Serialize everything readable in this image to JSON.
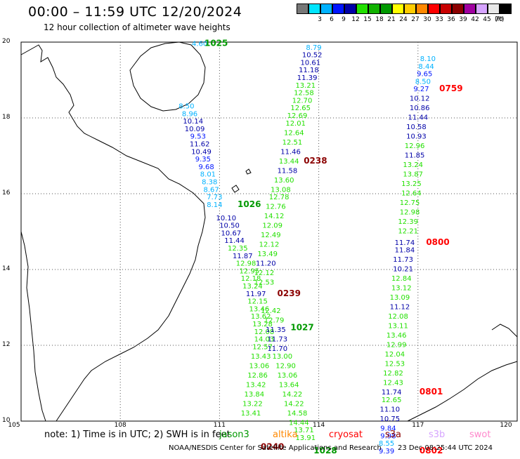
{
  "header": {
    "title": "00:00 – 11:59 UTC 12/20/2024",
    "subtitle": "12 hour collection of altimeter wave heights"
  },
  "colorbar": {
    "unit": "(ft)",
    "swatches": [
      {
        "color": "#777777",
        "label": ""
      },
      {
        "color": "#00e5ff",
        "label": "3"
      },
      {
        "color": "#00b2ff",
        "label": "6"
      },
      {
        "color": "#0015ff",
        "label": "9"
      },
      {
        "color": "#0000a8",
        "label": "12"
      },
      {
        "color": "#22e000",
        "label": "15"
      },
      {
        "color": "#11b200",
        "label": "18"
      },
      {
        "color": "#009900",
        "label": "21"
      },
      {
        "color": "#ffff00",
        "label": "24"
      },
      {
        "color": "#ffcc00",
        "label": "27"
      },
      {
        "color": "#ff8800",
        "label": "30"
      },
      {
        "color": "#ff0000",
        "label": "33"
      },
      {
        "color": "#c80000",
        "label": "36"
      },
      {
        "color": "#8b0000",
        "label": "39"
      },
      {
        "color": "#a000a0",
        "label": "42"
      },
      {
        "color": "#d6a4ff",
        "label": "45"
      },
      {
        "color": "#e8e8e8",
        "label": "70"
      },
      {
        "color": "#000000",
        "label": ""
      }
    ]
  },
  "axes": {
    "lat_ticks": [
      "20",
      "18",
      "16",
      "14",
      "12",
      "10"
    ],
    "lon_ticks": [
      "105",
      "108",
      "111",
      "114",
      "117",
      "120"
    ]
  },
  "tracks": [
    {
      "name": "jason3-west",
      "color_key": "green",
      "time": "1025",
      "points": [
        {
          "lat": 19.9,
          "lon": 110.4,
          "v": "4.60",
          "c": "#00b2ff"
        },
        {
          "lat": 18.25,
          "lon": 110.0,
          "v": "8.50",
          "c": "#00b2ff"
        },
        {
          "lat": 18.05,
          "lon": 110.1,
          "v": "8.96",
          "c": "#00b2ff"
        },
        {
          "lat": 17.85,
          "lon": 110.2,
          "v": "10.14",
          "c": "#0000a8"
        },
        {
          "lat": 17.65,
          "lon": 110.25,
          "v": "10.09",
          "c": "#0000a8"
        },
        {
          "lat": 17.45,
          "lon": 110.35,
          "v": "9.53",
          "c": "#0015ff"
        },
        {
          "lat": 17.25,
          "lon": 110.4,
          "v": "11.62",
          "c": "#0000a8"
        },
        {
          "lat": 17.05,
          "lon": 110.45,
          "v": "10.49",
          "c": "#0000a8"
        },
        {
          "lat": 16.85,
          "lon": 110.5,
          "v": "9.35",
          "c": "#0015ff"
        },
        {
          "lat": 16.65,
          "lon": 110.6,
          "v": "9.68",
          "c": "#0015ff"
        },
        {
          "lat": 16.45,
          "lon": 110.65,
          "v": "8.01",
          "c": "#00b2ff"
        },
        {
          "lat": 16.25,
          "lon": 110.7,
          "v": "8.38",
          "c": "#00b2ff"
        },
        {
          "lat": 16.05,
          "lon": 110.75,
          "v": "8.67",
          "c": "#00b2ff"
        },
        {
          "lat": 15.85,
          "lon": 110.85,
          "v": "7.73",
          "c": "#00b2ff"
        },
        {
          "lat": 15.65,
          "lon": 110.85,
          "v": "8.14",
          "c": "#00b2ff"
        }
      ]
    },
    {
      "name": "jason3-south",
      "color_key": "green",
      "time": "1026",
      "points": [
        {
          "lat": 15.3,
          "lon": 111.2,
          "v": "10.10",
          "c": "#0000a8"
        },
        {
          "lat": 15.1,
          "lon": 111.3,
          "v": "10.50",
          "c": "#0000a8"
        },
        {
          "lat": 14.9,
          "lon": 111.35,
          "v": "10.67",
          "c": "#0000a8"
        },
        {
          "lat": 14.7,
          "lon": 111.45,
          "v": "11.44",
          "c": "#0000a8"
        },
        {
          "lat": 14.5,
          "lon": 111.55,
          "v": "12.35",
          "c": "#22e000"
        },
        {
          "lat": 14.3,
          "lon": 111.7,
          "v": "11.87",
          "c": "#0000a8"
        },
        {
          "lat": 14.1,
          "lon": 111.8,
          "v": "12.98",
          "c": "#22e000"
        },
        {
          "lat": 13.9,
          "lon": 111.9,
          "v": "12.95",
          "c": "#22e000"
        },
        {
          "lat": 13.7,
          "lon": 111.95,
          "v": "12.18",
          "c": "#22e000"
        },
        {
          "lat": 13.5,
          "lon": 112.0,
          "v": "13.24",
          "c": "#22e000"
        },
        {
          "lat": 13.3,
          "lon": 112.1,
          "v": "11.97",
          "c": "#0000a8"
        },
        {
          "lat": 13.1,
          "lon": 112.15,
          "v": "12.15",
          "c": "#22e000"
        },
        {
          "lat": 12.9,
          "lon": 112.2,
          "v": "13.46",
          "c": "#22e000"
        },
        {
          "lat": 12.7,
          "lon": 112.25,
          "v": "13.62",
          "c": "#22e000"
        },
        {
          "lat": 12.5,
          "lon": 112.3,
          "v": "13.28",
          "c": "#22e000"
        },
        {
          "lat": 12.3,
          "lon": 112.35,
          "v": "12.08",
          "c": "#22e000"
        },
        {
          "lat": 12.1,
          "lon": 112.35,
          "v": "14.03",
          "c": "#22e000"
        },
        {
          "lat": 11.9,
          "lon": 112.3,
          "v": "12.57",
          "c": "#22e000"
        },
        {
          "lat": 11.65,
          "lon": 112.25,
          "v": "13.43",
          "c": "#22e000"
        },
        {
          "lat": 11.4,
          "lon": 112.2,
          "v": "13.06",
          "c": "#22e000"
        },
        {
          "lat": 11.15,
          "lon": 112.15,
          "v": "12.86",
          "c": "#22e000"
        },
        {
          "lat": 10.9,
          "lon": 112.1,
          "v": "13.42",
          "c": "#22e000"
        },
        {
          "lat": 10.65,
          "lon": 112.05,
          "v": "13.84",
          "c": "#22e000"
        },
        {
          "lat": 10.4,
          "lon": 112.0,
          "v": "13.22",
          "c": "#22e000"
        },
        {
          "lat": 10.15,
          "lon": 111.95,
          "v": "13.41",
          "c": "#22e000"
        }
      ]
    },
    {
      "name": "s3a-track-1",
      "color_key": "darkred",
      "time": "0238",
      "points": [
        {
          "lat": 19.8,
          "lon": 113.85,
          "v": "8.79",
          "c": "#00b2ff"
        },
        {
          "lat": 19.6,
          "lon": 113.8,
          "v": "10.52",
          "c": "#0000a8"
        },
        {
          "lat": 19.4,
          "lon": 113.75,
          "v": "10.61",
          "c": "#0000a8"
        },
        {
          "lat": 19.2,
          "lon": 113.7,
          "v": "11.18",
          "c": "#0000a8"
        },
        {
          "lat": 19.0,
          "lon": 113.65,
          "v": "11.39",
          "c": "#0000a8"
        },
        {
          "lat": 18.8,
          "lon": 113.6,
          "v": "13.21",
          "c": "#22e000"
        },
        {
          "lat": 18.6,
          "lon": 113.55,
          "v": "12.58",
          "c": "#22e000"
        },
        {
          "lat": 18.4,
          "lon": 113.5,
          "v": "12.70",
          "c": "#22e000"
        },
        {
          "lat": 18.2,
          "lon": 113.45,
          "v": "12.65",
          "c": "#22e000"
        },
        {
          "lat": 18.0,
          "lon": 113.35,
          "v": "12.69",
          "c": "#22e000"
        },
        {
          "lat": 17.8,
          "lon": 113.3,
          "v": "12.01",
          "c": "#22e000"
        },
        {
          "lat": 17.55,
          "lon": 113.25,
          "v": "12.64",
          "c": "#22e000"
        },
        {
          "lat": 17.3,
          "lon": 113.2,
          "v": "12.51",
          "c": "#22e000"
        },
        {
          "lat": 17.05,
          "lon": 113.15,
          "v": "11.46",
          "c": "#0000a8"
        },
        {
          "lat": 16.8,
          "lon": 113.1,
          "v": "13.44",
          "c": "#22e000"
        },
        {
          "lat": 16.55,
          "lon": 113.05,
          "v": "11.58",
          "c": "#0000a8"
        },
        {
          "lat": 16.3,
          "lon": 112.95,
          "v": "13.60",
          "c": "#22e000"
        },
        {
          "lat": 16.05,
          "lon": 112.85,
          "v": "13.08",
          "c": "#22e000"
        },
        {
          "lat": 15.85,
          "lon": 112.8,
          "v": "12.78",
          "c": "#22e000"
        },
        {
          "lat": 15.6,
          "lon": 112.7,
          "v": "12.76",
          "c": "#22e000"
        },
        {
          "lat": 15.35,
          "lon": 112.65,
          "v": "14.12",
          "c": "#22e000"
        },
        {
          "lat": 15.1,
          "lon": 112.6,
          "v": "12.09",
          "c": "#22e000"
        },
        {
          "lat": 14.85,
          "lon": 112.55,
          "v": "12.49",
          "c": "#22e000"
        },
        {
          "lat": 14.6,
          "lon": 112.5,
          "v": "12.12",
          "c": "#22e000"
        },
        {
          "lat": 14.35,
          "lon": 112.45,
          "v": "13.49",
          "c": "#22e000"
        },
        {
          "lat": 14.1,
          "lon": 112.4,
          "v": "11.20",
          "c": "#0000a8"
        },
        {
          "lat": 13.85,
          "lon": 112.35,
          "v": "12.12",
          "c": "#22e000"
        },
        {
          "lat": 13.6,
          "lon": 112.35,
          "v": "12.53",
          "c": "#22e000"
        }
      ]
    },
    {
      "name": "s3a-track-2",
      "color_key": "darkred",
      "time": "0239",
      "points": [
        {
          "lat": 12.85,
          "lon": 112.55,
          "v": "12.42",
          "c": "#22e000"
        },
        {
          "lat": 12.6,
          "lon": 112.65,
          "v": "12.79",
          "c": "#22e000"
        },
        {
          "lat": 12.35,
          "lon": 112.7,
          "v": "11.35",
          "c": "#0000a8"
        },
        {
          "lat": 12.1,
          "lon": 112.75,
          "v": "11.73",
          "c": "#0000a8"
        },
        {
          "lat": 11.85,
          "lon": 112.75,
          "v": "11.70",
          "c": "#0000a8"
        }
      ]
    },
    {
      "name": "jason3-east-ofseg",
      "color_key": "green",
      "time": "1027",
      "points": [
        {
          "lat": 11.65,
          "lon": 112.9,
          "v": "13.00",
          "c": "#22e000"
        },
        {
          "lat": 11.4,
          "lon": 113.0,
          "v": "12.90",
          "c": "#22e000"
        },
        {
          "lat": 11.15,
          "lon": 113.05,
          "v": "13.06",
          "c": "#22e000"
        },
        {
          "lat": 10.9,
          "lon": 113.1,
          "v": "13.64",
          "c": "#22e000"
        },
        {
          "lat": 10.65,
          "lon": 113.2,
          "v": "14.22",
          "c": "#22e000"
        },
        {
          "lat": 10.4,
          "lon": 113.25,
          "v": "14.22",
          "c": "#22e000"
        },
        {
          "lat": 10.15,
          "lon": 113.35,
          "v": "14.58",
          "c": "#22e000"
        },
        {
          "lat": 9.9,
          "lon": 113.4,
          "v": "14.44",
          "c": "#22e000"
        },
        {
          "lat": 9.7,
          "lon": 113.55,
          "v": "13.71",
          "c": "#22e000"
        },
        {
          "lat": 9.5,
          "lon": 113.6,
          "v": "13.91",
          "c": "#22e000"
        }
      ]
    },
    {
      "name": "s3a-east",
      "color_key": "red",
      "time": "0759",
      "points": [
        {
          "lat": 19.5,
          "lon": 117.3,
          "v": "8.10",
          "c": "#00b2ff"
        },
        {
          "lat": 19.3,
          "lon": 117.25,
          "v": "8.44",
          "c": "#00b2ff"
        },
        {
          "lat": 19.1,
          "lon": 117.2,
          "v": "9.65",
          "c": "#0015ff"
        },
        {
          "lat": 18.9,
          "lon": 117.15,
          "v": "8.50",
          "c": "#00b2ff"
        },
        {
          "lat": 18.7,
          "lon": 117.1,
          "v": "9.27",
          "c": "#0015ff"
        },
        {
          "lat": 18.45,
          "lon": 117.05,
          "v": "10.12",
          "c": "#0000a8"
        },
        {
          "lat": 18.2,
          "lon": 117.05,
          "v": "10.86",
          "c": "#0000a8"
        },
        {
          "lat": 17.95,
          "lon": 117.0,
          "v": "11.44",
          "c": "#0000a8"
        },
        {
          "lat": 17.7,
          "lon": 116.95,
          "v": "10.58",
          "c": "#0000a8"
        },
        {
          "lat": 17.45,
          "lon": 116.95,
          "v": "10.93",
          "c": "#0000a8"
        },
        {
          "lat": 17.2,
          "lon": 116.9,
          "v": "12.96",
          "c": "#22e000"
        },
        {
          "lat": 16.95,
          "lon": 116.9,
          "v": "11.85",
          "c": "#0000a8"
        },
        {
          "lat": 16.7,
          "lon": 116.85,
          "v": "13.24",
          "c": "#22e000"
        },
        {
          "lat": 16.45,
          "lon": 116.85,
          "v": "13.87",
          "c": "#22e000"
        },
        {
          "lat": 16.2,
          "lon": 116.8,
          "v": "13.25",
          "c": "#22e000"
        },
        {
          "lat": 15.95,
          "lon": 116.8,
          "v": "12.64",
          "c": "#22e000"
        },
        {
          "lat": 15.7,
          "lon": 116.75,
          "v": "12.75",
          "c": "#22e000"
        },
        {
          "lat": 15.45,
          "lon": 116.75,
          "v": "12.98",
          "c": "#22e000"
        },
        {
          "lat": 15.2,
          "lon": 116.7,
          "v": "12.39",
          "c": "#22e000"
        },
        {
          "lat": 14.95,
          "lon": 116.7,
          "v": "12.21",
          "c": "#22e000"
        }
      ]
    },
    {
      "name": "s3a-east-2",
      "color_key": "red",
      "time": "0800",
      "points": [
        {
          "lat": 14.65,
          "lon": 116.6,
          "v": "11.74",
          "c": "#0000a8"
        },
        {
          "lat": 14.45,
          "lon": 116.6,
          "v": "11.84",
          "c": "#0000a8"
        },
        {
          "lat": 14.2,
          "lon": 116.55,
          "v": "11.73",
          "c": "#0000a8"
        },
        {
          "lat": 13.95,
          "lon": 116.55,
          "v": "10.21",
          "c": "#0000a8"
        },
        {
          "lat": 13.7,
          "lon": 116.5,
          "v": "12.84",
          "c": "#22e000"
        },
        {
          "lat": 13.45,
          "lon": 116.5,
          "v": "13.12",
          "c": "#22e000"
        },
        {
          "lat": 13.2,
          "lon": 116.45,
          "v": "13.09",
          "c": "#22e000"
        },
        {
          "lat": 12.95,
          "lon": 116.45,
          "v": "11.12",
          "c": "#0000a8"
        },
        {
          "lat": 12.7,
          "lon": 116.4,
          "v": "12.08",
          "c": "#22e000"
        },
        {
          "lat": 12.45,
          "lon": 116.4,
          "v": "13.11",
          "c": "#22e000"
        },
        {
          "lat": 12.2,
          "lon": 116.35,
          "v": "13.46",
          "c": "#22e000"
        },
        {
          "lat": 11.95,
          "lon": 116.35,
          "v": "12.99",
          "c": "#22e000"
        },
        {
          "lat": 11.7,
          "lon": 116.3,
          "v": "12.04",
          "c": "#22e000"
        },
        {
          "lat": 11.45,
          "lon": 116.3,
          "v": "12.53",
          "c": "#22e000"
        },
        {
          "lat": 11.2,
          "lon": 116.25,
          "v": "12.82",
          "c": "#22e000"
        },
        {
          "lat": 10.95,
          "lon": 116.25,
          "v": "12.43",
          "c": "#22e000"
        }
      ]
    },
    {
      "name": "s3a-east-3",
      "color_key": "red",
      "time": "0801",
      "points": [
        {
          "lat": 10.7,
          "lon": 116.2,
          "v": "11.74",
          "c": "#0000a8"
        },
        {
          "lat": 10.5,
          "lon": 116.2,
          "v": "12.65",
          "c": "#22e000"
        },
        {
          "lat": 10.25,
          "lon": 116.15,
          "v": "11.10",
          "c": "#0000a8"
        },
        {
          "lat": 10.0,
          "lon": 116.15,
          "v": "10.75",
          "c": "#0000a8"
        },
        {
          "lat": 9.75,
          "lon": 116.1,
          "v": "9.84",
          "c": "#0015ff"
        },
        {
          "lat": 9.55,
          "lon": 116.1,
          "v": "9.98",
          "c": "#0015ff"
        },
        {
          "lat": 9.35,
          "lon": 116.05,
          "v": "8.55",
          "c": "#00b2ff"
        },
        {
          "lat": 9.15,
          "lon": 116.05,
          "v": "9.39",
          "c": "#0015ff"
        }
      ]
    }
  ],
  "timestamps": [
    {
      "t": "1025",
      "lat": 19.9,
      "lon": 110.9,
      "c": "#009900"
    },
    {
      "t": "0759",
      "lat": 18.7,
      "lon": 118.0,
      "c": "#ff0000"
    },
    {
      "t": "0238",
      "lat": 16.8,
      "lon": 113.9,
      "c": "#8b0000"
    },
    {
      "t": "1026",
      "lat": 15.65,
      "lon": 111.9,
      "c": "#009900"
    },
    {
      "t": "0800",
      "lat": 14.65,
      "lon": 117.6,
      "c": "#ff0000"
    },
    {
      "t": "0239",
      "lat": 13.3,
      "lon": 113.1,
      "c": "#8b0000"
    },
    {
      "t": "1027",
      "lat": 12.4,
      "lon": 113.5,
      "c": "#009900"
    },
    {
      "t": "0801",
      "lat": 10.7,
      "lon": 117.4,
      "c": "#ff0000"
    },
    {
      "t": "0240",
      "lat": 9.25,
      "lon": 112.6,
      "c": "#8b0000"
    },
    {
      "t": "1028",
      "lat": 9.15,
      "lon": 114.2,
      "c": "#009900"
    },
    {
      "t": "0802",
      "lat": 9.15,
      "lon": 117.4,
      "c": "#ff0000"
    }
  ],
  "notes": {
    "text": "note: 1) Time is in UTC; 2) SWH is in feet",
    "sats": [
      {
        "name": "jason3",
        "color": "#009900"
      },
      {
        "name": "altika",
        "color": "#ff8800"
      },
      {
        "name": "cryosat",
        "color": "#ff0000"
      },
      {
        "name": "s3a",
        "color": "#8b0000"
      },
      {
        "name": "s3b",
        "color": "#d6a4ff"
      },
      {
        "name": "swot",
        "color": "#ff88cc"
      }
    ]
  },
  "footer": {
    "left": "NOAA/NESDIS Center for Satellite Applications and Research",
    "right": "23 Dec 08:25:44 UTC 2024"
  }
}
